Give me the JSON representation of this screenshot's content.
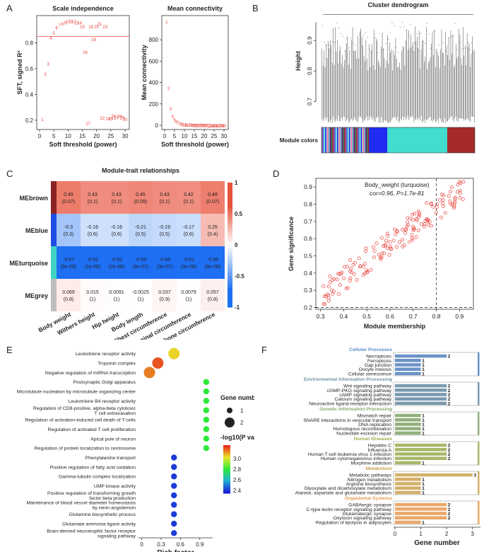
{
  "panel_labels": {
    "a": "A",
    "b": "B",
    "c": "C",
    "d": "D",
    "e": "E",
    "f": "F"
  },
  "colors": {
    "red": "#e8413a",
    "turquoise": "#41ddcf",
    "blue": "#1f2bf0",
    "brown": "#a52a2a",
    "grey": "#bebebe",
    "heat_pos": "#e8523c",
    "heat_neg": "#1e6ff2"
  },
  "chart_data": [
    {
      "id": "A1",
      "type": "scatter",
      "title": "Scale independence",
      "xlabel": "Soft threshold (power)",
      "ylabel": "SFT, signed R²",
      "xlim": [
        0,
        30
      ],
      "ylim": [
        0.15,
        1.0
      ],
      "xticks": [
        0,
        5,
        10,
        15,
        20,
        25,
        30
      ],
      "yticks": [
        0.2,
        0.4,
        0.6,
        0.8
      ],
      "hline": 0.85,
      "marker": "power label text",
      "x": [
        1,
        2,
        3,
        4,
        5,
        6,
        7,
        8,
        9,
        10,
        11,
        12,
        13,
        14,
        15,
        16,
        17,
        18,
        19,
        20,
        21,
        22,
        23,
        24,
        25,
        26,
        27,
        28,
        29,
        30
      ],
      "y": [
        0.21,
        0.56,
        0.64,
        0.84,
        0.88,
        0.92,
        0.94,
        0.95,
        0.96,
        0.97,
        0.97,
        0.97,
        0.96,
        0.96,
        0.93,
        0.73,
        0.18,
        0.93,
        0.83,
        0.93,
        0.95,
        0.22,
        0.93,
        0.215,
        0.215,
        0.235,
        0.22,
        0.235,
        0.225,
        0.21
      ]
    },
    {
      "id": "A2",
      "type": "scatter",
      "title": "Mean connectivity",
      "xlabel": "Soft threshold (power)",
      "ylabel": "Mean connectivity",
      "xlim": [
        0,
        30
      ],
      "ylim": [
        0,
        1000
      ],
      "xticks": [
        0,
        5,
        10,
        15,
        20,
        25,
        30
      ],
      "yticks": [
        0,
        200,
        400,
        600,
        800
      ],
      "marker": "power label text",
      "x": [
        1,
        2,
        3,
        4,
        5,
        6,
        7,
        8,
        9,
        10,
        11,
        12,
        13,
        14,
        15,
        16,
        17,
        18,
        19,
        20,
        21,
        22,
        23,
        24,
        25,
        26,
        27,
        28,
        29,
        30
      ],
      "y": [
        975,
        350,
        160,
        90,
        55,
        35,
        25,
        18,
        13,
        10,
        8,
        7,
        6,
        5,
        4,
        4,
        3,
        3,
        2,
        2,
        2,
        2,
        1,
        1,
        1,
        1,
        1,
        1,
        1,
        1
      ]
    },
    {
      "id": "B",
      "type": "dendrogram",
      "title": "Cluster dendrogram",
      "ylabel": "Height",
      "yticks": [
        0.7,
        0.8,
        0.9
      ],
      "ylim": [
        0.62,
        1.0
      ],
      "module_label": "Module colors",
      "modules": [
        {
          "name": "mixed",
          "fraction": 0.31
        },
        {
          "name": "blue",
          "fraction": 0.12
        },
        {
          "name": "turquoise",
          "fraction": 0.39
        },
        {
          "name": "brown",
          "fraction": 0.18
        }
      ]
    },
    {
      "id": "C",
      "type": "heatmap",
      "title": "Module-trait relationships",
      "rows": [
        "MEbrown",
        "MEblue",
        "MEturquoise",
        "MEgrey"
      ],
      "row_colors": [
        "#8b2323",
        "#1f4ee6",
        "#3fd6c5",
        "#bebebe"
      ],
      "columns": [
        "Body weight",
        "Withers height",
        "Hip height",
        "Body length",
        "Chest circumference",
        "Abdominal circumference",
        "Cannon bone circumference"
      ],
      "correlations": [
        [
          0.49,
          0.43,
          0.43,
          0.45,
          0.43,
          0.42,
          0.48
        ],
        [
          -0.3,
          -0.16,
          -0.16,
          -0.21,
          -0.19,
          -0.17,
          0.25
        ],
        [
          -0.97,
          -0.92,
          -0.92,
          -0.93,
          -0.94,
          -0.91,
          -0.96
        ],
        [
          0.069,
          0.015,
          0.0091,
          -0.0025,
          0.037,
          0.0079,
          0.057
        ]
      ],
      "cell_text": [
        [
          "0.49",
          "0.43",
          "0.43",
          "0.45",
          "0.43",
          "0.42",
          "0.48"
        ],
        [
          "-0.3",
          "-0.16",
          "-0.16",
          "-0.21",
          "-0.19",
          "-0.17",
          "0.25"
        ],
        [
          "-0.97",
          "-0.92",
          "-0.92",
          "-0.93",
          "-0.94",
          "-0.91",
          "-0.96"
        ],
        [
          "0.069",
          "0.015",
          "0.0091",
          "-0.0025",
          "0.037",
          "0.0079",
          "0.057"
        ]
      ],
      "pvalues": [
        [
          "(0.07)",
          "(0.1)",
          "(0.1)",
          "(0.09)",
          "(0.1)",
          "(0.1)",
          "(0.07)"
        ],
        [
          "(0.3)",
          "(0.6)",
          "(0.6)",
          "(0.5)",
          "(0.5)",
          "(0.6)",
          "(0.4)"
        ],
        [
          "(5e-09)",
          "(1e-06)",
          "(2e-06)",
          "(4e-07)",
          "(3e-07)",
          "(3e-06)",
          "(9e-09)"
        ],
        [
          "(0.8)",
          "(1)",
          "(1)",
          "(1)",
          "(0.9)",
          "(1)",
          "(0.8)"
        ]
      ],
      "legend_ticks": [
        "1",
        "0.5",
        "0",
        "-0.5",
        "-1"
      ],
      "legend_values": [
        1,
        0.5,
        0,
        -0.5,
        -1
      ]
    },
    {
      "id": "D",
      "type": "scatter",
      "title": "Body_weight (turquoise)",
      "annotation": "cor=0.96, P=1.7e-81",
      "xlabel": "Module membership",
      "ylabel": "Gene significance",
      "xlim": [
        0.28,
        0.96
      ],
      "ylim": [
        0.19,
        0.95
      ],
      "xticks": [
        0.3,
        0.4,
        0.5,
        0.6,
        0.7,
        0.8,
        0.9
      ],
      "yticks": [
        0.2,
        0.3,
        0.4,
        0.5,
        0.6,
        0.7,
        0.8,
        0.9
      ],
      "vline": 0.8,
      "hline": 0.2,
      "n_points": 160,
      "slope": 1.02,
      "intercept": -0.04
    },
    {
      "id": "E",
      "type": "scatter",
      "title": "GO enrichment (bubble)",
      "xlabel": "Rich factor",
      "xlim": [
        -0.05,
        1.1
      ],
      "xticks": [
        "0",
        "0.3",
        "0.6",
        "0.9"
      ],
      "xtick_values": [
        0,
        0.3,
        0.6,
        0.9
      ],
      "terms": [
        {
          "label": "Leukotriene receptor activity",
          "rich": 0.5,
          "p": 3.05,
          "n": 2
        },
        {
          "label": "Troponin complex",
          "rich": 0.25,
          "p": 3.2,
          "n": 2
        },
        {
          "label": "Negative regulation of miRNA transcription",
          "rich": 0.12,
          "p": 3.15,
          "n": 2
        },
        {
          "label": "Postsynaptic Golgi apparatus",
          "rich": 1.0,
          "p": 2.8,
          "n": 1
        },
        {
          "label": "Microtubule nucleation by microtubule organizing center",
          "rich": 1.0,
          "p": 2.8,
          "n": 1
        },
        {
          "label": "Leukotriene B4 receptor activity",
          "rich": 1.0,
          "p": 2.8,
          "n": 1
        },
        {
          "label": "Regulation of CD8-positive, alpha-beta cytotoxic T cell extravasation",
          "rich": 1.0,
          "p": 2.8,
          "n": 1
        },
        {
          "label": "Regulation of activation-induced cell death of T-cells",
          "rich": 1.0,
          "p": 2.8,
          "n": 1
        },
        {
          "label": "Regulation of activated T cell proliferation",
          "rich": 1.0,
          "p": 2.8,
          "n": 1
        },
        {
          "label": "Apical pole of neuron",
          "rich": 1.0,
          "p": 2.8,
          "n": 1
        },
        {
          "label": "Regulation of protein localization to centrosome",
          "rich": 1.0,
          "p": 2.8,
          "n": 1
        },
        {
          "label": "Phenylalanine transport",
          "rich": 0.5,
          "p": 2.4,
          "n": 1
        },
        {
          "label": "Positive regulation of fatty acid oxidation",
          "rich": 0.5,
          "p": 2.4,
          "n": 1
        },
        {
          "label": "Gamma-tubulin complex localization",
          "rich": 0.5,
          "p": 2.4,
          "n": 1
        },
        {
          "label": "UMP kinase activity",
          "rich": 0.5,
          "p": 2.4,
          "n": 1
        },
        {
          "label": "Positive regulation of transforming growth factor beta production",
          "rich": 0.5,
          "p": 2.4,
          "n": 1
        },
        {
          "label": "Maintenance of blood vessel diameter homeostasis by renin-angiotensin",
          "rich": 0.5,
          "p": 2.4,
          "n": 1
        },
        {
          "label": "Glutamine biosynthetic process",
          "rich": 0.5,
          "p": 2.4,
          "n": 1
        },
        {
          "label": "Glutamate-ammonia ligase activity",
          "rich": 0.5,
          "p": 2.4,
          "n": 1
        },
        {
          "label": "Brain-derived neurotrophic factor receptor signaling pathway",
          "rich": 0.5,
          "p": 2.4,
          "n": 1
        }
      ],
      "size_legend_title": "Gene number",
      "size_legend": [
        "1",
        "2"
      ],
      "color_legend_title": "-log10(P value)",
      "color_ticks": [
        "3.0",
        "2.8",
        "2.6",
        "2.4"
      ],
      "color_tick_values": [
        3.0,
        2.8,
        2.6,
        2.4
      ]
    },
    {
      "id": "F",
      "type": "bar",
      "orientation": "horizontal",
      "xlabel": "Gene number",
      "xticks": [
        "0",
        "1",
        "2",
        "3"
      ],
      "xlim": [
        0,
        3.2
      ],
      "groups": [
        {
          "name": "Cellular Processes",
          "color": "#6a93c8",
          "title_color": "#5b8ac9",
          "items": [
            {
              "label": "Necroptosis",
              "value": 2
            },
            {
              "label": "Ferroptosis",
              "value": 1
            },
            {
              "label": "Gap junction",
              "value": 1
            },
            {
              "label": "Oocyte meiosis",
              "value": 1
            },
            {
              "label": "Cellular senescence",
              "value": 1
            }
          ]
        },
        {
          "name": "Environmental Information Processing",
          "color": "#7a9aae",
          "title_color": "#6f93a8",
          "items": [
            {
              "label": "Wnt signaling pathway",
              "value": 2
            },
            {
              "label": "cGMP-PKG signaling pathway",
              "value": 2
            },
            {
              "label": "cAMP signaling pathway",
              "value": 2
            },
            {
              "label": "Calcium signaling pathway",
              "value": 2
            },
            {
              "label": "Neuroactive ligand-receptor interaction",
              "value": 2
            }
          ]
        },
        {
          "name": "Genetic Information Processing",
          "color": "#92b07e",
          "title_color": "#84a86c",
          "items": [
            {
              "label": "Mismatch repair",
              "value": 1
            },
            {
              "label": "SNARE interactions in vesicular transport",
              "value": 1
            },
            {
              "label": "DNA replication",
              "value": 1
            },
            {
              "label": "Homologous recombination",
              "value": 1
            },
            {
              "label": "Nucleotide excision repair",
              "value": 1
            }
          ]
        },
        {
          "name": "Human Diseases",
          "color": "#a8b86a",
          "title_color": "#9cad4f",
          "items": [
            {
              "label": "Hepatitis C",
              "value": 2
            },
            {
              "label": "Influenza A",
              "value": 2
            },
            {
              "label": "Human T-cell leukemia virus 1 infection",
              "value": 2
            },
            {
              "label": "Human cytomegalovirus infection",
              "value": 2
            },
            {
              "label": "Morphine addiction",
              "value": 1
            }
          ]
        },
        {
          "name": "Metabolism",
          "color": "#d4b06a",
          "title_color": "#c8a24f",
          "items": [
            {
              "label": "Metabolic pathways",
              "value": 3
            },
            {
              "label": "Nitrogen metabolism",
              "value": 1
            },
            {
              "label": "Arginine biosynthesis",
              "value": 1
            },
            {
              "label": "Glyoxylate and dicarboxylate metabolism",
              "value": 1
            },
            {
              "label": "Alanine, aspartate and glutamate metabolism",
              "value": 1
            }
          ]
        },
        {
          "name": "Organismal Systems",
          "color": "#eaa86a",
          "title_color": "#e29a55",
          "items": [
            {
              "label": "GABAergic synapse",
              "value": 2
            },
            {
              "label": "C-type lectin receptor signaling pathway",
              "value": 2
            },
            {
              "label": "Glutamatergic synapse",
              "value": 2
            },
            {
              "label": "Oxytocin signaling pathway",
              "value": 2
            },
            {
              "label": "Regulation of lipolysis in adipocytes",
              "value": 1
            }
          ]
        }
      ]
    }
  ]
}
